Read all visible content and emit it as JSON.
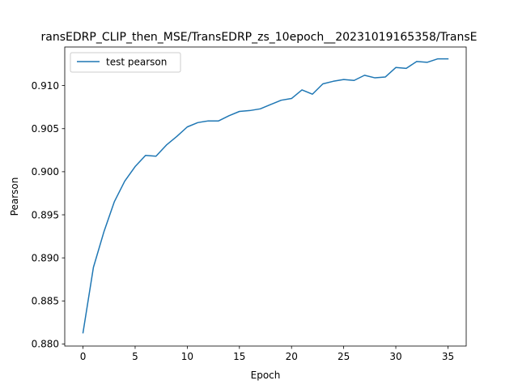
{
  "chart_data": {
    "type": "line",
    "title": "ransEDRP_CLIP_then_MSE/TransEDRP_zs_10epoch__20231019165358/TransE",
    "xlabel": "Epoch",
    "ylabel": "Pearson",
    "xlim": [
      -1.75,
      36.75
    ],
    "ylim": [
      0.87976,
      0.91448
    ],
    "xticks": [
      0,
      5,
      10,
      15,
      20,
      25,
      30,
      35
    ],
    "xtick_labels": [
      "0",
      "5",
      "10",
      "15",
      "20",
      "25",
      "30",
      "35"
    ],
    "yticks": [
      0.88,
      0.885,
      0.89,
      0.895,
      0.9,
      0.905,
      0.91
    ],
    "ytick_labels": [
      "0.880",
      "0.885",
      "0.890",
      "0.895",
      "0.900",
      "0.905",
      "0.910"
    ],
    "grid": false,
    "legend_position": "upper-left",
    "series": [
      {
        "name": "test pearson",
        "color": "#1f77b4",
        "x": [
          0,
          1,
          2,
          3,
          4,
          5,
          6,
          7,
          8,
          9,
          10,
          11,
          12,
          13,
          14,
          15,
          16,
          17,
          18,
          19,
          20,
          21,
          22,
          23,
          24,
          25,
          26,
          27,
          28,
          29,
          30,
          31,
          32,
          33,
          34,
          35
        ],
        "y": [
          0.8813,
          0.8889,
          0.893,
          0.8965,
          0.8989,
          0.9006,
          0.9019,
          0.9018,
          0.9031,
          0.9041,
          0.9052,
          0.9057,
          0.9059,
          0.9059,
          0.9065,
          0.907,
          0.9071,
          0.9073,
          0.9078,
          0.9083,
          0.9085,
          0.9095,
          0.909,
          0.9102,
          0.9105,
          0.9107,
          0.9106,
          0.9112,
          0.9109,
          0.911,
          0.9121,
          0.912,
          0.9128,
          0.9127,
          0.9131,
          0.9131
        ]
      }
    ]
  }
}
